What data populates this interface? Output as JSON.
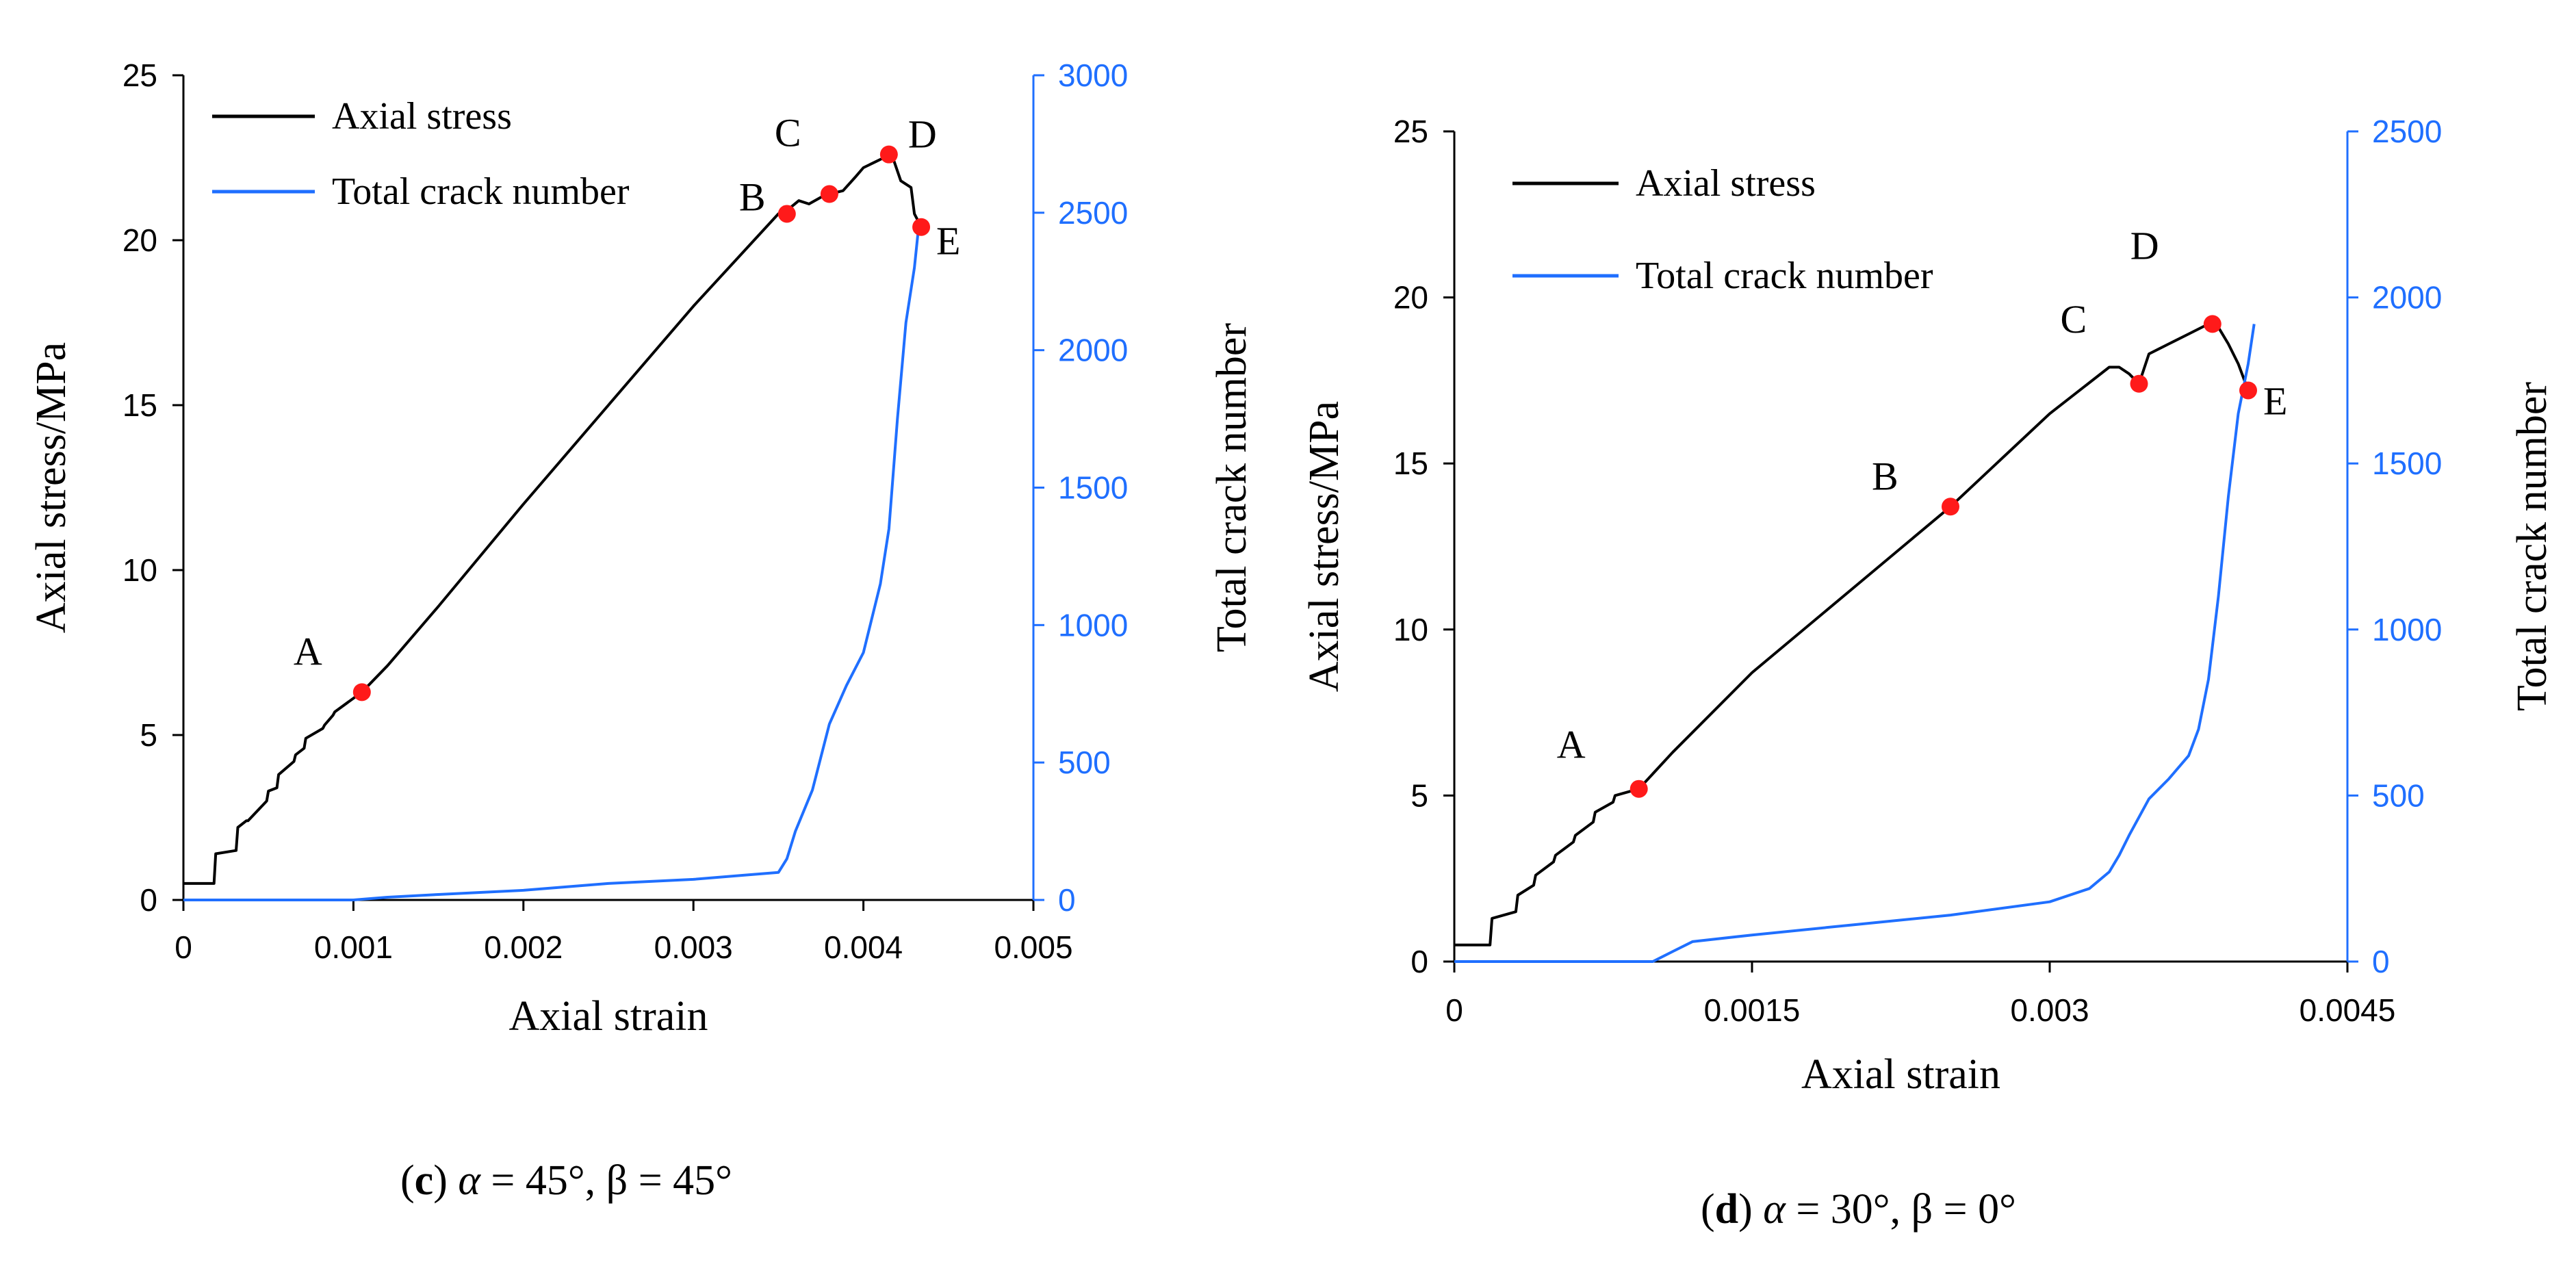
{
  "colors": {
    "stress": "#000000",
    "crack": "#1f6fff",
    "marker": "#ff1a1a",
    "axis": "#000000"
  },
  "chart_data": [
    {
      "type": "line",
      "panel": "c",
      "caption": {
        "label": "c",
        "alpha_sym": "α",
        "rest": " = 45°, β = 45°"
      },
      "xlabel": "Axial strain",
      "ylabel": "Axial stress/MPa",
      "y2label": "Total crack number",
      "xlim": [
        0,
        0.005
      ],
      "ylim": [
        0,
        25
      ],
      "y2lim": [
        0,
        3000
      ],
      "xticks": [
        0,
        0.001,
        0.002,
        0.003,
        0.004,
        0.005
      ],
      "xtick_labels": [
        "0",
        "0.001",
        "0.002",
        "0.003",
        "0.004",
        "0.005"
      ],
      "yticks": [
        0,
        5,
        10,
        15,
        20,
        25
      ],
      "ytick_labels": [
        "0",
        "5",
        "10",
        "15",
        "20",
        "25"
      ],
      "y2ticks": [
        0,
        500,
        1000,
        1500,
        2000,
        2500,
        3000
      ],
      "y2tick_labels": [
        "0",
        "500",
        "1000",
        "1500",
        "2000",
        "2500",
        "3000"
      ],
      "legend": [
        "Axial stress",
        "Total crack number"
      ],
      "series": [
        {
          "name": "Axial stress",
          "axis": "left",
          "x": [
            0,
            0.00018,
            0.00019,
            0.00031,
            0.00032,
            0.00037,
            0.00038,
            0.00049,
            0.0005,
            0.00055,
            0.00056,
            0.00065,
            0.00066,
            0.00071,
            0.00072,
            0.00082,
            0.00083,
            0.00088,
            0.00089,
            0.00097,
            0.00105,
            0.0012,
            0.0015,
            0.002,
            0.0025,
            0.003,
            0.0035,
            0.00355,
            0.00362,
            0.00368,
            0.00375,
            0.0038,
            0.00388,
            0.00395,
            0.004,
            0.00408,
            0.00412,
            0.00415,
            0.00418,
            0.00422,
            0.00428,
            0.0043,
            0.00434
          ],
          "y": [
            0.5,
            0.5,
            1.4,
            1.5,
            2.2,
            2.4,
            2.4,
            3.0,
            3.3,
            3.4,
            3.8,
            4.2,
            4.4,
            4.6,
            4.9,
            5.2,
            5.3,
            5.6,
            5.7,
            6.0,
            6.3,
            7.1,
            8.9,
            12.0,
            15.0,
            18.0,
            20.8,
            20.9,
            21.2,
            21.1,
            21.3,
            21.4,
            21.5,
            21.9,
            22.2,
            22.4,
            22.5,
            22.6,
            22.4,
            21.8,
            21.6,
            20.8,
            20.4
          ]
        },
        {
          "name": "Total crack number",
          "axis": "right",
          "x": [
            0,
            0.001,
            0.0012,
            0.0015,
            0.002,
            0.0025,
            0.003,
            0.0033,
            0.0035,
            0.00355,
            0.0036,
            0.0037,
            0.0038,
            0.0039,
            0.004,
            0.0041,
            0.00415,
            0.0042,
            0.00425,
            0.0043,
            0.00432,
            0.00434
          ],
          "y": [
            0,
            0,
            10,
            20,
            35,
            60,
            75,
            90,
            100,
            150,
            250,
            400,
            640,
            780,
            900,
            1150,
            1350,
            1750,
            2100,
            2300,
            2420,
            2470
          ]
        }
      ],
      "points": [
        {
          "label": "A",
          "x": 0.00105,
          "y": 6.3
        },
        {
          "label": "B",
          "x": 0.00355,
          "y": 20.8
        },
        {
          "label": "C",
          "x": 0.0038,
          "y": 21.4
        },
        {
          "label": "D",
          "x": 0.00415,
          "y": 22.6
        },
        {
          "label": "E",
          "x": 0.00434,
          "y": 20.4
        }
      ]
    },
    {
      "type": "line",
      "panel": "d",
      "caption": {
        "label": "d",
        "alpha_sym": "α",
        "rest": " = 30°, β = 0°"
      },
      "xlabel": "Axial strain",
      "ylabel": "Axial stress/MPa",
      "y2label": "Total crack number",
      "xlim": [
        0,
        0.0045
      ],
      "ylim": [
        0,
        25
      ],
      "y2lim": [
        0,
        2500
      ],
      "xticks": [
        0,
        0.0015,
        0.003,
        0.0045
      ],
      "xtick_labels": [
        "0",
        "0.0015",
        "0.003",
        "0.0045"
      ],
      "yticks": [
        0,
        5,
        10,
        15,
        20,
        25
      ],
      "ytick_labels": [
        "0",
        "5",
        "10",
        "15",
        "20",
        "25"
      ],
      "y2ticks": [
        0,
        500,
        1000,
        1500,
        2000,
        2500
      ],
      "y2tick_labels": [
        "0",
        "500",
        "1000",
        "1500",
        "2000",
        "2500"
      ],
      "legend": [
        "Axial stress",
        "Total crack number"
      ],
      "series": [
        {
          "name": "Axial stress",
          "axis": "left",
          "x": [
            0,
            0.00018,
            0.00019,
            0.00031,
            0.00032,
            0.0004,
            0.00041,
            0.0005,
            0.00051,
            0.0006,
            0.00061,
            0.0007,
            0.00071,
            0.0008,
            0.00081,
            0.00093,
            0.0011,
            0.0015,
            0.002,
            0.0025,
            0.003,
            0.0033,
            0.00335,
            0.0034,
            0.00345,
            0.0035,
            0.0036,
            0.0037,
            0.0038,
            0.00382,
            0.00385,
            0.0039,
            0.00395,
            0.004
          ],
          "y": [
            0.5,
            0.5,
            1.3,
            1.5,
            2.0,
            2.3,
            2.6,
            3.0,
            3.2,
            3.6,
            3.8,
            4.2,
            4.5,
            4.8,
            5.0,
            5.2,
            6.3,
            8.7,
            11.2,
            13.7,
            16.5,
            17.9,
            17.9,
            17.7,
            17.4,
            18.3,
            18.6,
            18.9,
            19.2,
            19.2,
            19.1,
            18.6,
            18.0,
            17.2
          ]
        },
        {
          "name": "Total crack number",
          "axis": "right",
          "x": [
            0,
            0.001,
            0.0011,
            0.0012,
            0.0015,
            0.002,
            0.0025,
            0.003,
            0.0032,
            0.0033,
            0.00335,
            0.0034,
            0.0035,
            0.0036,
            0.0037,
            0.00375,
            0.0038,
            0.00385,
            0.0039,
            0.00395,
            0.004,
            0.00403
          ],
          "y": [
            0,
            0,
            30,
            60,
            80,
            110,
            140,
            180,
            220,
            270,
            320,
            380,
            490,
            550,
            620,
            700,
            850,
            1100,
            1400,
            1650,
            1800,
            1920
          ]
        }
      ],
      "points": [
        {
          "label": "A",
          "x": 0.00093,
          "y": 5.2
        },
        {
          "label": "B",
          "x": 0.0025,
          "y": 13.7
        },
        {
          "label": "C",
          "x": 0.00345,
          "y": 17.4
        },
        {
          "label": "D",
          "x": 0.00382,
          "y": 19.2
        },
        {
          "label": "E",
          "x": 0.004,
          "y": 17.2
        }
      ]
    }
  ]
}
